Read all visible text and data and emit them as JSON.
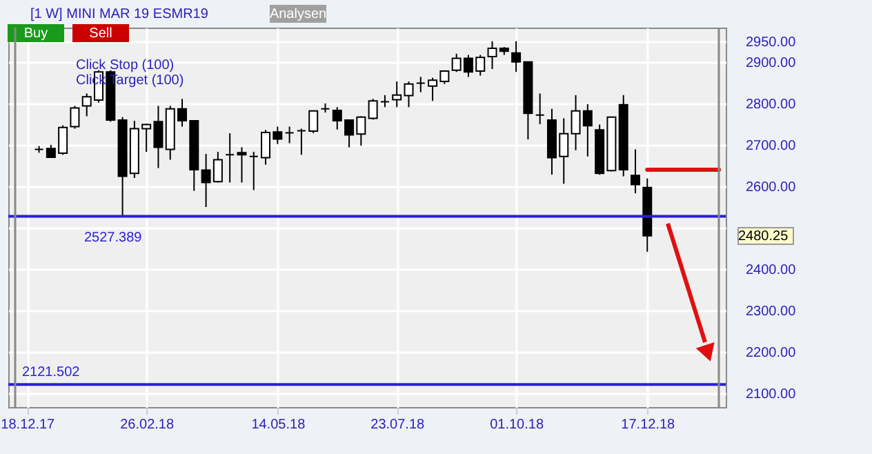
{
  "chart_data": {
    "type": "candlestick",
    "title": "[1 W] MINI MAR 19   ESMR19",
    "x": [
      "2017-12-25",
      "2018-01-01",
      "2018-01-08",
      "2018-01-15",
      "2018-01-22",
      "2018-01-29",
      "2018-02-05",
      "2018-02-12",
      "2018-02-19",
      "2018-02-26",
      "2018-03-05",
      "2018-03-12",
      "2018-03-19",
      "2018-03-26",
      "2018-04-02",
      "2018-04-09",
      "2018-04-16",
      "2018-04-23",
      "2018-04-30",
      "2018-05-07",
      "2018-05-14",
      "2018-05-21",
      "2018-05-28",
      "2018-06-04",
      "2018-06-11",
      "2018-06-18",
      "2018-06-25",
      "2018-07-02",
      "2018-07-09",
      "2018-07-16",
      "2018-07-23",
      "2018-07-30",
      "2018-08-06",
      "2018-08-13",
      "2018-08-20",
      "2018-08-27",
      "2018-09-03",
      "2018-09-10",
      "2018-09-17",
      "2018-09-24",
      "2018-10-01",
      "2018-10-08",
      "2018-10-15",
      "2018-10-22",
      "2018-10-29",
      "2018-11-05",
      "2018-11-12",
      "2018-11-19",
      "2018-11-26",
      "2018-12-03",
      "2018-12-10",
      "2018-12-17"
    ],
    "ohlc": [
      [
        2689,
        2697,
        2681,
        2689
      ],
      [
        2691,
        2700,
        2669,
        2670
      ],
      [
        2680,
        2747,
        2676,
        2742
      ],
      [
        2744,
        2794,
        2739,
        2789
      ],
      [
        2794,
        2824,
        2769,
        2816
      ],
      [
        2808,
        2880,
        2802,
        2876
      ],
      [
        2876,
        2880,
        2756,
        2760
      ],
      [
        2760,
        2767,
        2528,
        2624
      ],
      [
        2631,
        2758,
        2620,
        2739
      ],
      [
        2739,
        2751,
        2683,
        2749
      ],
      [
        2756,
        2794,
        2644,
        2694
      ],
      [
        2689,
        2794,
        2664,
        2787
      ],
      [
        2787,
        2811,
        2744,
        2758
      ],
      [
        2758,
        2758,
        2589,
        2640
      ],
      [
        2639,
        2678,
        2550,
        2609
      ],
      [
        2611,
        2683,
        2609,
        2664
      ],
      [
        2676,
        2728,
        2609,
        2676
      ],
      [
        2681,
        2694,
        2609,
        2676
      ],
      [
        2672,
        2683,
        2591,
        2672
      ],
      [
        2669,
        2736,
        2652,
        2730
      ],
      [
        2731,
        2744,
        2702,
        2714
      ],
      [
        2729,
        2744,
        2704,
        2729
      ],
      [
        2734,
        2739,
        2676,
        2734
      ],
      [
        2733,
        2782,
        2728,
        2782
      ],
      [
        2787,
        2800,
        2778,
        2787
      ],
      [
        2783,
        2791,
        2737,
        2758
      ],
      [
        2760,
        2760,
        2694,
        2724
      ],
      [
        2726,
        2769,
        2698,
        2767
      ],
      [
        2764,
        2811,
        2761,
        2806
      ],
      [
        2804,
        2820,
        2791,
        2804
      ],
      [
        2809,
        2853,
        2791,
        2820
      ],
      [
        2819,
        2853,
        2791,
        2847
      ],
      [
        2849,
        2864,
        2827,
        2849
      ],
      [
        2842,
        2862,
        2806,
        2856
      ],
      [
        2853,
        2880,
        2847,
        2878
      ],
      [
        2880,
        2920,
        2876,
        2909
      ],
      [
        2909,
        2917,
        2864,
        2876
      ],
      [
        2878,
        2917,
        2867,
        2911
      ],
      [
        2913,
        2950,
        2883,
        2933
      ],
      [
        2933,
        2936,
        2917,
        2926
      ],
      [
        2922,
        2950,
        2876,
        2900
      ],
      [
        2900,
        2900,
        2713,
        2776
      ],
      [
        2772,
        2824,
        2750,
        2772
      ],
      [
        2760,
        2787,
        2628,
        2669
      ],
      [
        2672,
        2764,
        2606,
        2727
      ],
      [
        2727,
        2820,
        2687,
        2782
      ],
      [
        2782,
        2798,
        2672,
        2746
      ],
      [
        2736,
        2749,
        2628,
        2631
      ],
      [
        2638,
        2767,
        2636,
        2767
      ],
      [
        2797,
        2820,
        2624,
        2640
      ],
      [
        2626,
        2689,
        2583,
        2604
      ],
      [
        2597,
        2619,
        2442,
        2480.25
      ]
    ],
    "colors": [
      "#000000",
      "#000000",
      "#ffffff",
      "#ffffff",
      "#ffffff",
      "#ffffff",
      "#000000",
      "#000000",
      "#ffffff",
      "#ffffff",
      "#000000",
      "#ffffff",
      "#000000",
      "#000000",
      "#000000",
      "#ffffff",
      "#000000",
      "#000000",
      "#000000",
      "#ffffff",
      "#000000",
      "#000000",
      "#000000",
      "#ffffff",
      "#000000",
      "#000000",
      "#000000",
      "#ffffff",
      "#ffffff",
      "#000000",
      "#ffffff",
      "#ffffff",
      "#000000",
      "#ffffff",
      "#ffffff",
      "#ffffff",
      "#000000",
      "#ffffff",
      "#ffffff",
      "#000000",
      "#000000",
      "#000000",
      "#000000",
      "#000000",
      "#ffffff",
      "#ffffff",
      "#000000",
      "#000000",
      "#ffffff",
      "#000000",
      "#000000",
      "#000000"
    ],
    "xlim": [
      "2017-12-11",
      "2019-01-28"
    ],
    "xticks": [
      {
        "value": "2017-12-18",
        "label": "18.12.17"
      },
      {
        "value": "2018-02-26",
        "label": "26.02.18"
      },
      {
        "value": "2018-05-14",
        "label": "14.05.18"
      },
      {
        "value": "2018-07-23",
        "label": "23.07.18"
      },
      {
        "value": "2018-10-01",
        "label": "01.10.18"
      },
      {
        "value": "2018-12-17",
        "label": "17.12.18"
      }
    ],
    "ylim": [
      2067,
      2983
    ],
    "yticks": [
      {
        "value": 2100,
        "label": "2100.00"
      },
      {
        "value": 2200,
        "label": "2200.00"
      },
      {
        "value": 2300,
        "label": "2300.00"
      },
      {
        "value": 2400,
        "label": "2400.00"
      },
      {
        "value": 2500,
        "label": null
      },
      {
        "value": 2600,
        "label": "2600.00"
      },
      {
        "value": 2700,
        "label": "2700.00"
      },
      {
        "value": 2800,
        "label": "2800.00"
      },
      {
        "value": 2900,
        "label": "2900.00"
      },
      {
        "value": 2950,
        "label": "2950.00"
      }
    ],
    "grid": true,
    "ref_lines": [
      {
        "axis": "y",
        "value": 2527.389,
        "label": "2527.389",
        "color": "#2a1fd6"
      },
      {
        "axis": "y",
        "value": 2121.502,
        "label": "2121.502",
        "color": "#2a1fd6"
      }
    ],
    "annotations": [
      "Buy",
      "Sell",
      "Analysen",
      "Click Stop  (100)",
      "Click Target (100)",
      "2480.25"
    ],
    "series": [
      {
        "type": "line",
        "color": "#e01010",
        "x": [
          "2018-12-17",
          "2019-01-28"
        ],
        "values": [
          2640,
          2640
        ]
      }
    ]
  }
}
